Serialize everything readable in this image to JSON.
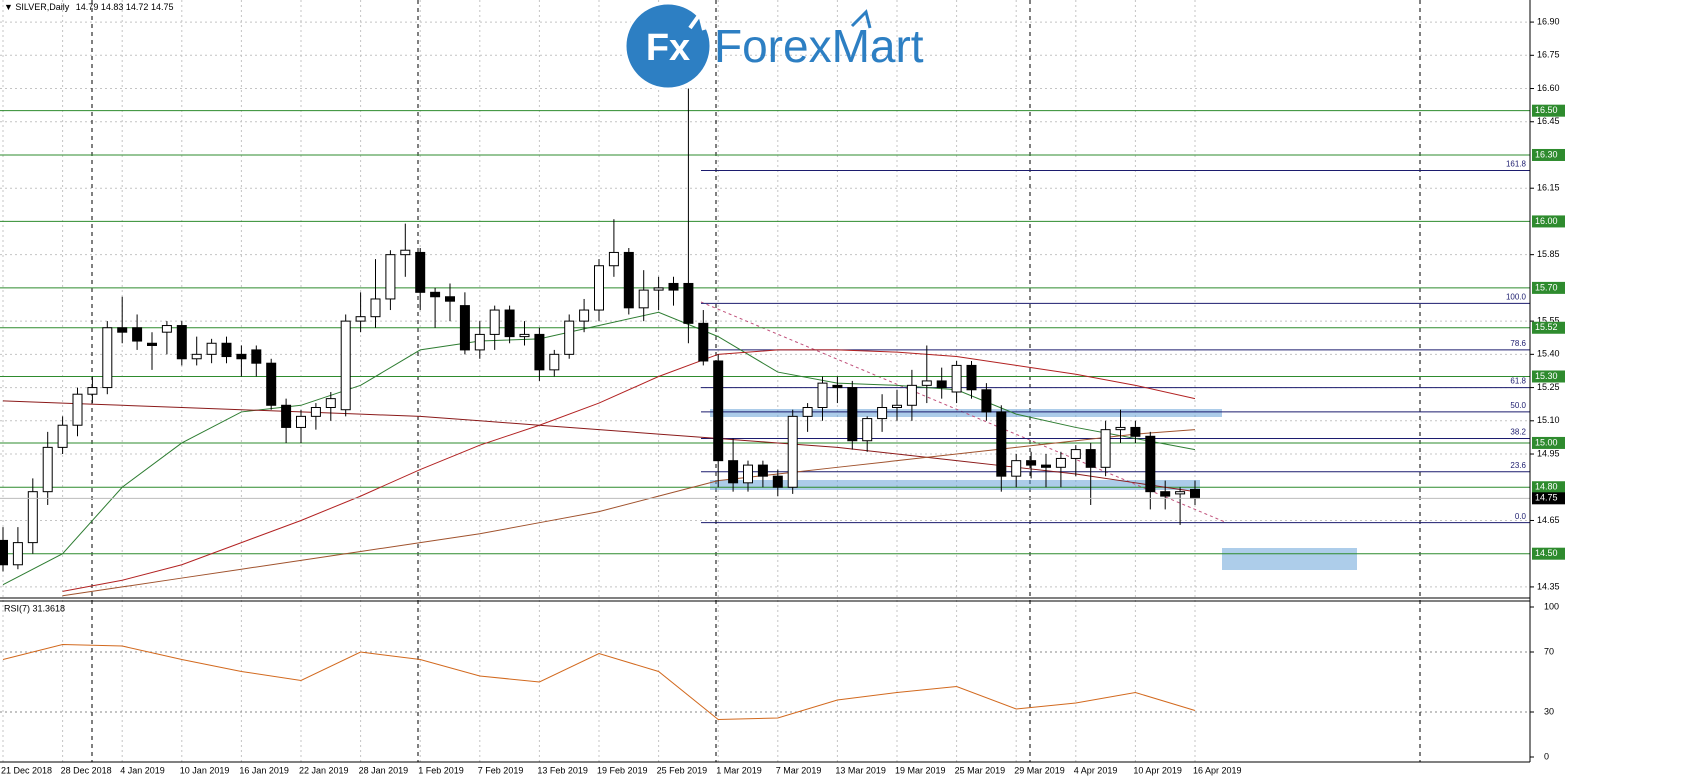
{
  "chart_data": {
    "type": "candlestick",
    "symbol": "SILVER,Daily",
    "categories": [
      "21 Dec 2018",
      null,
      null,
      null,
      "28 Dec 2018",
      null,
      null,
      null,
      "4 Jan 2019",
      null,
      null,
      null,
      "10 Jan 2019",
      null,
      null,
      null,
      "16 Jan 2019",
      null,
      null,
      null,
      "22 Jan 2019",
      null,
      null,
      null,
      "28 Jan 2019",
      null,
      null,
      null,
      "1 Feb 2019",
      null,
      null,
      null,
      "7 Feb 2019",
      null,
      null,
      null,
      "13 Feb 2019",
      null,
      null,
      null,
      "19 Feb 2019",
      null,
      null,
      null,
      "25 Feb 2019",
      null,
      null,
      null,
      "1 Mar 2019",
      null,
      null,
      null,
      "7 Mar 2019",
      null,
      null,
      null,
      "13 Mar 2019",
      null,
      null,
      null,
      "19 Mar 2019",
      null,
      null,
      null,
      "25 Mar 2019",
      null,
      null,
      null,
      "29 Mar 2019",
      null,
      null,
      null,
      "4 Apr 2019",
      null,
      null,
      null,
      "10 Apr 2019",
      null,
      null,
      null,
      "16 Apr 2019"
    ],
    "ohlc": [
      [
        14.56,
        14.62,
        14.42,
        14.45
      ],
      [
        14.45,
        14.62,
        14.43,
        14.55
      ],
      [
        14.55,
        14.84,
        14.5,
        14.78
      ],
      [
        14.78,
        15.05,
        14.72,
        14.98
      ],
      [
        14.98,
        15.12,
        14.95,
        15.08
      ],
      [
        15.08,
        15.25,
        15.03,
        15.22
      ],
      [
        15.22,
        15.3,
        15.18,
        15.25
      ],
      [
        15.25,
        15.55,
        15.22,
        15.52
      ],
      [
        15.52,
        15.66,
        15.45,
        15.5
      ],
      [
        15.52,
        15.58,
        15.42,
        15.46
      ],
      [
        15.45,
        15.5,
        15.33,
        15.44
      ],
      [
        15.5,
        15.55,
        15.4,
        15.53
      ],
      [
        15.53,
        15.55,
        15.35,
        15.38
      ],
      [
        15.38,
        15.48,
        15.35,
        15.4
      ],
      [
        15.4,
        15.47,
        15.36,
        15.45
      ],
      [
        15.45,
        15.48,
        15.36,
        15.39
      ],
      [
        15.4,
        15.44,
        15.3,
        15.38
      ],
      [
        15.42,
        15.44,
        15.3,
        15.36
      ],
      [
        15.36,
        15.38,
        15.15,
        15.17
      ],
      [
        15.17,
        15.2,
        15.0,
        15.07
      ],
      [
        15.07,
        15.15,
        15.0,
        15.12
      ],
      [
        15.12,
        15.18,
        15.06,
        15.16
      ],
      [
        15.16,
        15.23,
        15.1,
        15.2
      ],
      [
        15.15,
        15.58,
        15.12,
        15.55
      ],
      [
        15.55,
        15.68,
        15.5,
        15.57
      ],
      [
        15.57,
        15.83,
        15.52,
        15.65
      ],
      [
        15.65,
        15.87,
        15.6,
        15.85
      ],
      [
        15.85,
        15.99,
        15.75,
        15.87
      ],
      [
        15.86,
        15.88,
        15.6,
        15.68
      ],
      [
        15.68,
        15.7,
        15.52,
        15.66
      ],
      [
        15.66,
        15.72,
        15.55,
        15.64
      ],
      [
        15.62,
        15.68,
        15.4,
        15.42
      ],
      [
        15.42,
        15.55,
        15.38,
        15.49
      ],
      [
        15.49,
        15.62,
        15.42,
        15.6
      ],
      [
        15.6,
        15.62,
        15.45,
        15.48
      ],
      [
        15.48,
        15.55,
        15.44,
        15.49
      ],
      [
        15.49,
        15.52,
        15.28,
        15.33
      ],
      [
        15.33,
        15.42,
        15.3,
        15.4
      ],
      [
        15.4,
        15.58,
        15.38,
        15.55
      ],
      [
        15.55,
        15.65,
        15.5,
        15.6
      ],
      [
        15.6,
        15.83,
        15.55,
        15.8
      ],
      [
        15.8,
        16.01,
        15.75,
        15.86
      ],
      [
        15.86,
        15.88,
        15.58,
        15.61
      ],
      [
        15.61,
        15.78,
        15.55,
        15.69
      ],
      [
        15.69,
        15.75,
        15.6,
        15.7
      ],
      [
        15.72,
        15.75,
        15.62,
        15.69
      ],
      [
        15.72,
        16.6,
        15.45,
        15.54
      ],
      [
        15.54,
        15.6,
        15.35,
        15.37
      ],
      [
        15.37,
        15.4,
        14.8,
        14.92
      ],
      [
        14.92,
        15.02,
        14.78,
        14.82
      ],
      [
        14.82,
        14.92,
        14.78,
        14.9
      ],
      [
        14.9,
        14.92,
        14.8,
        14.85
      ],
      [
        14.85,
        14.88,
        14.76,
        14.8
      ],
      [
        14.8,
        15.15,
        14.77,
        15.12
      ],
      [
        15.12,
        15.18,
        15.05,
        15.16
      ],
      [
        15.16,
        15.3,
        15.1,
        15.27
      ],
      [
        15.26,
        15.3,
        15.18,
        15.25
      ],
      [
        15.25,
        15.28,
        14.97,
        15.01
      ],
      [
        15.01,
        15.12,
        14.96,
        15.11
      ],
      [
        15.11,
        15.22,
        15.05,
        15.16
      ],
      [
        15.16,
        15.24,
        15.1,
        15.17
      ],
      [
        15.17,
        15.33,
        15.1,
        15.26
      ],
      [
        15.26,
        15.44,
        15.18,
        15.28
      ],
      [
        15.28,
        15.34,
        15.2,
        15.25
      ],
      [
        15.23,
        15.37,
        15.18,
        15.35
      ],
      [
        15.35,
        15.37,
        15.2,
        15.24
      ],
      [
        15.24,
        15.27,
        15.1,
        15.14
      ],
      [
        15.14,
        15.17,
        14.78,
        14.85
      ],
      [
        14.85,
        14.95,
        14.8,
        14.92
      ],
      [
        14.92,
        14.96,
        14.84,
        14.9
      ],
      [
        14.9,
        14.95,
        14.8,
        14.89
      ],
      [
        14.89,
        14.96,
        14.8,
        14.93
      ],
      [
        14.93,
        14.99,
        14.85,
        14.97
      ],
      [
        14.97,
        15.0,
        14.72,
        14.89
      ],
      [
        14.89,
        15.1,
        14.85,
        15.06
      ],
      [
        15.06,
        15.15,
        15.0,
        15.07
      ],
      [
        15.07,
        15.1,
        15.0,
        15.03
      ],
      [
        15.03,
        15.05,
        14.7,
        14.78
      ],
      [
        14.78,
        14.83,
        14.7,
        14.76
      ],
      [
        14.77,
        14.8,
        14.63,
        14.78
      ],
      [
        14.79,
        14.83,
        14.72,
        14.75
      ]
    ],
    "up_color": "#ffffff",
    "down_color": "#000000",
    "ylim": [
      14.3,
      16.95
    ],
    "yticks": [
      {
        "value": 16.9,
        "label": "16.90"
      },
      {
        "value": 16.75,
        "label": "16.75"
      },
      {
        "value": 16.6,
        "label": "16.60"
      },
      {
        "value": 16.45,
        "label": "16.45"
      },
      {
        "value": 16.15,
        "label": "16.15"
      },
      {
        "value": 15.85,
        "label": "15.85"
      },
      {
        "value": 15.55,
        "label": "15.55"
      },
      {
        "value": 15.4,
        "label": "15.40"
      },
      {
        "value": 15.25,
        "label": "15.25"
      },
      {
        "value": 15.1,
        "label": "15.10"
      },
      {
        "value": 14.95,
        "label": "14.95"
      },
      {
        "value": 14.65,
        "label": "14.65"
      },
      {
        "value": 14.35,
        "label": "14.35"
      }
    ],
    "grid": true,
    "levels": [
      {
        "value": 16.5,
        "label": "16.50"
      },
      {
        "value": 16.3,
        "label": "16.30"
      },
      {
        "value": 16.0,
        "label": "16.00"
      },
      {
        "value": 15.7,
        "label": "15.70"
      },
      {
        "value": 15.52,
        "label": "15.52"
      },
      {
        "value": 15.3,
        "label": "15.30"
      },
      {
        "value": 15.0,
        "label": "15.00"
      },
      {
        "value": 14.8,
        "label": "14.80"
      },
      {
        "value": 14.5,
        "label": "14.50"
      }
    ],
    "level_color": "#2e8b2e",
    "last": {
      "value": 14.75,
      "label": "14.75"
    },
    "fib": [
      {
        "level": 161.8,
        "price": 16.23
      },
      {
        "level": {
          "value": 100,
          "label": "100.0"
        },
        "price": 15.63
      },
      {
        "level": 78.6,
        "price": 15.42
      },
      {
        "level": 61.8,
        "price": 15.25
      },
      {
        "level": {
          "value": 50,
          "label": "50.0"
        },
        "price": 15.14
      },
      {
        "level": 38.2,
        "price": 15.02
      },
      {
        "level": 23.6,
        "price": 14.87
      },
      {
        "level": {
          "value": 0,
          "label": "0.0"
        },
        "price": 14.64
      }
    ],
    "fib_color": "#1c1c6e",
    "line_x": [
      0,
      4,
      8,
      12,
      16,
      20,
      24,
      28,
      32,
      36,
      40,
      44,
      48,
      52,
      56,
      60,
      64,
      68,
      72,
      76,
      80
    ],
    "moving_averages": [
      {
        "color": "#2e7d32",
        "values": [
          14.36,
          14.5,
          14.8,
          15.0,
          15.14,
          15.17,
          15.26,
          15.42,
          15.46,
          15.47,
          15.53,
          15.59,
          15.48,
          15.32,
          15.27,
          15.26,
          15.24,
          15.13,
          15.07,
          15.02,
          14.97
        ]
      },
      {
        "color": "#b22222",
        "values": [
          null,
          14.33,
          14.38,
          14.45,
          14.55,
          14.65,
          14.76,
          14.88,
          14.99,
          15.08,
          15.18,
          15.3,
          15.4,
          15.42,
          15.42,
          15.41,
          15.39,
          15.35,
          15.31,
          15.26,
          15.2
        ]
      },
      {
        "color": "#8b1a1a",
        "values": [
          15.19,
          15.18,
          15.17,
          15.16,
          15.15,
          15.14,
          15.13,
          15.12,
          15.1,
          15.08,
          15.06,
          15.04,
          15.02,
          15.0,
          14.98,
          14.95,
          14.92,
          14.89,
          14.86,
          14.82,
          14.78
        ]
      },
      {
        "color": "#a0522d",
        "values": [
          null,
          14.31,
          14.35,
          14.39,
          14.43,
          14.47,
          14.51,
          14.55,
          14.59,
          14.64,
          14.69,
          14.76,
          14.83,
          14.86,
          14.89,
          14.92,
          14.95,
          14.98,
          15.01,
          15.04,
          15.06
        ]
      }
    ],
    "rsi": {
      "label": "RSI(7) 31.3618",
      "color": "#d2691e",
      "ylim": [
        0,
        100
      ],
      "yticks": [
        0,
        30,
        70,
        100
      ],
      "values": [
        65,
        75,
        74,
        65,
        57,
        51,
        70,
        65,
        54,
        50,
        69,
        57,
        25,
        26,
        38,
        43,
        47,
        32,
        36,
        43,
        31
      ]
    }
  },
  "logo": {
    "icon": "Fx",
    "text": "ForexMart"
  }
}
